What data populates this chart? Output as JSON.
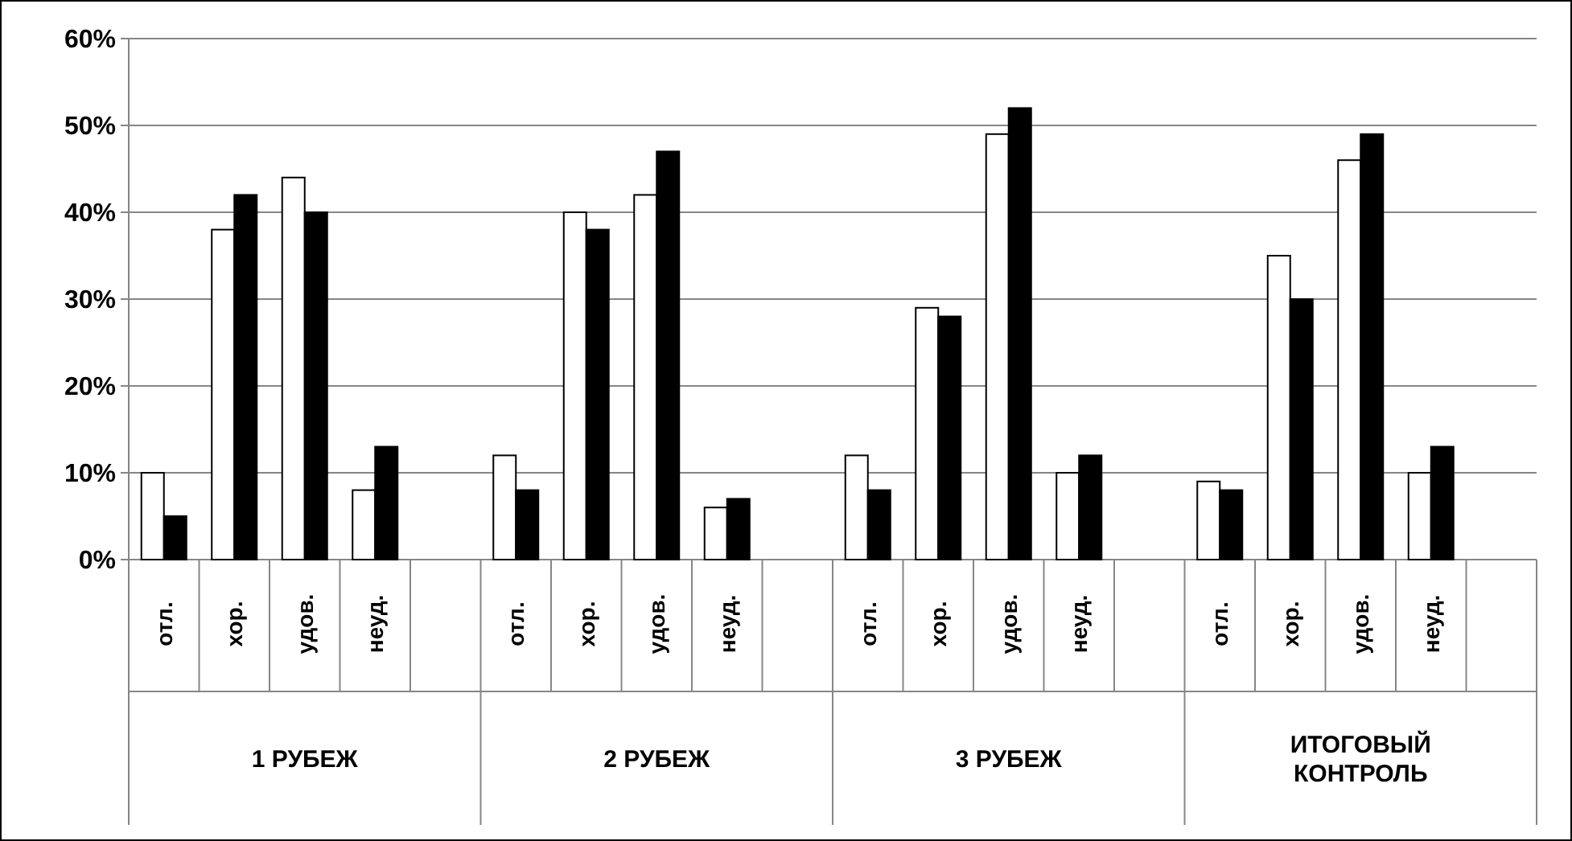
{
  "chart_data": {
    "type": "bar",
    "categories": [
      "отл.",
      "хор.",
      "удов.",
      "неуд.",
      null,
      "отл.",
      "хор.",
      "удов.",
      "неуд.",
      null,
      "отл.",
      "хор.",
      "удов.",
      "неуд.",
      null,
      "отл.",
      "хор.",
      "удов.",
      "неуд.",
      null
    ],
    "series": [
      {
        "color": "#ffffff",
        "values": [
          10,
          38,
          44,
          8,
          null,
          12,
          40,
          42,
          6,
          null,
          12,
          29,
          49,
          10,
          null,
          9,
          35,
          46,
          10,
          null
        ]
      },
      {
        "color": "#000000",
        "values": [
          5,
          42,
          40,
          13,
          null,
          8,
          38,
          47,
          7,
          null,
          8,
          28,
          52,
          12,
          null,
          8,
          30,
          49,
          13,
          null
        ]
      }
    ],
    "annotations": [
      "1 РУБЕЖ",
      "2 РУБЕЖ",
      "3 РУБЕЖ",
      "ИТОГОВЫЙ КОНТРОЛЬ"
    ],
    "ylim": [
      0,
      60
    ],
    "yticks": [
      {
        "value": 0,
        "label": "0%"
      },
      {
        "value": 10,
        "label": "10%"
      },
      {
        "value": 20,
        "label": "20%"
      },
      {
        "value": 30,
        "label": "30%"
      },
      {
        "value": 40,
        "label": "40%"
      },
      {
        "value": 50,
        "label": "50%"
      },
      {
        "value": 60,
        "label": "60%"
      }
    ],
    "grid": true
  }
}
